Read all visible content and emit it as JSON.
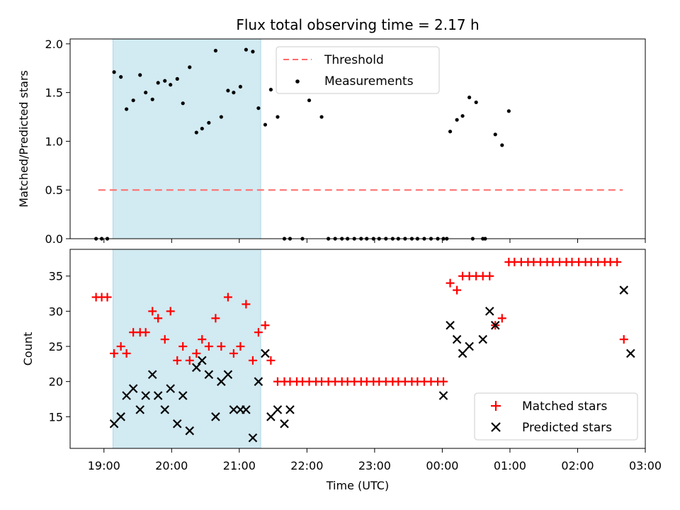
{
  "figure": {
    "title": "Flux total observing time = 2.17 h"
  },
  "chart_data": [
    {
      "type": "scatter",
      "panel": "top",
      "title": "Flux total observing time = 2.17 h",
      "xlabel": "",
      "ylabel": "Matched/Predicted stars",
      "xlim": [
        "18:30",
        "03:00"
      ],
      "ylim": [
        0,
        2.05
      ],
      "yticks": [
        "0.0",
        "0.5",
        "1.0",
        "1.5",
        "2.0"
      ],
      "grid": false,
      "legend_position": "top-center",
      "highlight_span": {
        "from": "19:08",
        "to": "21:19",
        "color": "#add8e6"
      },
      "threshold": {
        "name": "Threshold",
        "value": 0.5,
        "from": "18:55",
        "to": "02:40",
        "color": "#ff6b6b"
      },
      "series": [
        {
          "name": "Measurements",
          "color": "#000000",
          "points": [
            [
              "18:53",
              0
            ],
            [
              "18:58",
              0
            ],
            [
              "19:03",
              0
            ],
            [
              "19:09",
              1.71
            ],
            [
              "19:15",
              1.66
            ],
            [
              "19:20",
              1.33
            ],
            [
              "19:26",
              1.42
            ],
            [
              "19:32",
              1.68
            ],
            [
              "19:37",
              1.5
            ],
            [
              "19:43",
              1.43
            ],
            [
              "19:48",
              1.6
            ],
            [
              "19:54",
              1.62
            ],
            [
              "19:59",
              1.58
            ],
            [
              "20:05",
              1.64
            ],
            [
              "20:10",
              1.39
            ],
            [
              "20:16",
              1.76
            ],
            [
              "20:22",
              1.09
            ],
            [
              "20:27",
              1.13
            ],
            [
              "20:33",
              1.19
            ],
            [
              "20:39",
              1.93
            ],
            [
              "20:44",
              1.25
            ],
            [
              "20:50",
              1.52
            ],
            [
              "20:55",
              1.5
            ],
            [
              "21:01",
              1.56
            ],
            [
              "21:06",
              1.94
            ],
            [
              "21:12",
              1.92
            ],
            [
              "21:17",
              1.34
            ],
            [
              "21:23",
              1.17
            ],
            [
              "21:28",
              1.53
            ],
            [
              "21:34",
              1.25
            ],
            [
              "21:40",
              0
            ],
            [
              "21:45",
              0
            ],
            [
              "21:56",
              0
            ],
            [
              "22:02",
              1.42
            ],
            [
              "22:13",
              1.25
            ],
            [
              "22:19",
              0
            ],
            [
              "22:25",
              0
            ],
            [
              "22:31",
              0
            ],
            [
              "22:36",
              0
            ],
            [
              "22:42",
              0
            ],
            [
              "22:48",
              0
            ],
            [
              "22:53",
              0
            ],
            [
              "22:59",
              0
            ],
            [
              "23:04",
              0
            ],
            [
              "23:10",
              0
            ],
            [
              "23:16",
              0
            ],
            [
              "23:21",
              0
            ],
            [
              "23:27",
              0
            ],
            [
              "23:33",
              0
            ],
            [
              "23:38",
              0
            ],
            [
              "23:44",
              0
            ],
            [
              "23:50",
              0
            ],
            [
              "23:56",
              0
            ],
            [
              "00:01",
              0
            ],
            [
              "00:07",
              1.1
            ],
            [
              "00:13",
              1.22
            ],
            [
              "00:18",
              1.26
            ],
            [
              "00:24",
              1.45
            ],
            [
              "00:27",
              0
            ],
            [
              "00:30",
              1.4
            ],
            [
              "00:36",
              0
            ],
            [
              "00:38",
              0
            ],
            [
              "00:47",
              1.07
            ],
            [
              "00:53",
              0.96
            ],
            [
              "00:59",
              1.31
            ],
            [
              "00:04",
              0
            ]
          ]
        }
      ]
    },
    {
      "type": "scatter",
      "panel": "bottom",
      "title": "",
      "xlabel": "Time (UTC)",
      "ylabel": "Count",
      "xlim": [
        "18:30",
        "03:00"
      ],
      "ylim": [
        10.5,
        38.8
      ],
      "yticks": [
        "15",
        "20",
        "25",
        "30",
        "35"
      ],
      "xticks": [
        "19:00",
        "20:00",
        "21:00",
        "22:00",
        "23:00",
        "00:00",
        "01:00",
        "02:00",
        "03:00"
      ],
      "grid": false,
      "legend_position": "lower-right",
      "highlight_span": {
        "from": "19:08",
        "to": "21:19",
        "color": "#add8e6"
      },
      "series": [
        {
          "name": "Matched stars",
          "color": "#ff0000",
          "marker": "plus",
          "points": [
            [
              "18:53",
              32
            ],
            [
              "18:58",
              32
            ],
            [
              "19:03",
              32
            ],
            [
              "19:09",
              24
            ],
            [
              "19:15",
              25
            ],
            [
              "19:20",
              24
            ],
            [
              "19:26",
              27
            ],
            [
              "19:32",
              27
            ],
            [
              "19:37",
              27
            ],
            [
              "19:43",
              30
            ],
            [
              "19:48",
              29
            ],
            [
              "19:54",
              26
            ],
            [
              "19:59",
              30
            ],
            [
              "20:05",
              23
            ],
            [
              "20:10",
              25
            ],
            [
              "20:16",
              23
            ],
            [
              "20:22",
              24
            ],
            [
              "20:27",
              26
            ],
            [
              "20:33",
              25
            ],
            [
              "20:39",
              29
            ],
            [
              "20:44",
              25
            ],
            [
              "20:50",
              32
            ],
            [
              "20:55",
              24
            ],
            [
              "21:01",
              25
            ],
            [
              "21:06",
              31
            ],
            [
              "21:12",
              23
            ],
            [
              "21:17",
              27
            ],
            [
              "21:23",
              28
            ],
            [
              "21:28",
              23
            ],
            [
              "21:34",
              20
            ],
            [
              "21:40",
              20
            ],
            [
              "21:45",
              20
            ],
            [
              "21:51",
              20
            ],
            [
              "21:56",
              20
            ],
            [
              "22:02",
              20
            ],
            [
              "22:08",
              20
            ],
            [
              "22:13",
              20
            ],
            [
              "22:19",
              20
            ],
            [
              "22:25",
              20
            ],
            [
              "22:31",
              20
            ],
            [
              "22:36",
              20
            ],
            [
              "22:42",
              20
            ],
            [
              "22:48",
              20
            ],
            [
              "22:53",
              20
            ],
            [
              "22:59",
              20
            ],
            [
              "23:04",
              20
            ],
            [
              "23:10",
              20
            ],
            [
              "23:16",
              20
            ],
            [
              "23:21",
              20
            ],
            [
              "23:27",
              20
            ],
            [
              "23:33",
              20
            ],
            [
              "23:38",
              20
            ],
            [
              "23:44",
              20
            ],
            [
              "23:50",
              20
            ],
            [
              "23:56",
              20
            ],
            [
              "00:01",
              20
            ],
            [
              "00:07",
              34
            ],
            [
              "00:13",
              33
            ],
            [
              "00:18",
              35
            ],
            [
              "00:24",
              35
            ],
            [
              "00:30",
              35
            ],
            [
              "00:36",
              35
            ],
            [
              "00:42",
              35
            ],
            [
              "00:47",
              28
            ],
            [
              "00:53",
              29
            ],
            [
              "00:59",
              37
            ],
            [
              "01:04",
              37
            ],
            [
              "01:10",
              37
            ],
            [
              "01:16",
              37
            ],
            [
              "01:21",
              37
            ],
            [
              "01:27",
              37
            ],
            [
              "01:33",
              37
            ],
            [
              "01:38",
              37
            ],
            [
              "01:44",
              37
            ],
            [
              "01:50",
              37
            ],
            [
              "01:55",
              37
            ],
            [
              "02:01",
              37
            ],
            [
              "02:07",
              37
            ],
            [
              "02:12",
              37
            ],
            [
              "02:18",
              37
            ],
            [
              "02:24",
              37
            ],
            [
              "02:29",
              37
            ],
            [
              "02:35",
              37
            ],
            [
              "02:41",
              26
            ]
          ]
        },
        {
          "name": "Predicted stars",
          "color": "#000000",
          "marker": "x",
          "points": [
            [
              "19:09",
              14
            ],
            [
              "19:15",
              15
            ],
            [
              "19:20",
              18
            ],
            [
              "19:26",
              19
            ],
            [
              "19:32",
              16
            ],
            [
              "19:37",
              18
            ],
            [
              "19:43",
              21
            ],
            [
              "19:48",
              18
            ],
            [
              "19:54",
              16
            ],
            [
              "19:59",
              19
            ],
            [
              "20:05",
              14
            ],
            [
              "20:10",
              18
            ],
            [
              "20:16",
              13
            ],
            [
              "20:22",
              22
            ],
            [
              "20:27",
              23
            ],
            [
              "20:33",
              21
            ],
            [
              "20:39",
              15
            ],
            [
              "20:44",
              20
            ],
            [
              "20:50",
              21
            ],
            [
              "20:55",
              16
            ],
            [
              "21:01",
              16
            ],
            [
              "21:06",
              16
            ],
            [
              "21:12",
              12
            ],
            [
              "21:17",
              20
            ],
            [
              "21:23",
              24
            ],
            [
              "21:28",
              15
            ],
            [
              "21:34",
              16
            ],
            [
              "21:40",
              14
            ],
            [
              "21:45",
              16
            ],
            [
              "00:01",
              18
            ],
            [
              "00:07",
              28
            ],
            [
              "00:13",
              26
            ],
            [
              "00:18",
              24
            ],
            [
              "00:24",
              25
            ],
            [
              "00:36",
              26
            ],
            [
              "00:42",
              30
            ],
            [
              "00:47",
              28
            ],
            [
              "02:41",
              33
            ],
            [
              "02:47",
              24
            ]
          ]
        }
      ]
    }
  ]
}
